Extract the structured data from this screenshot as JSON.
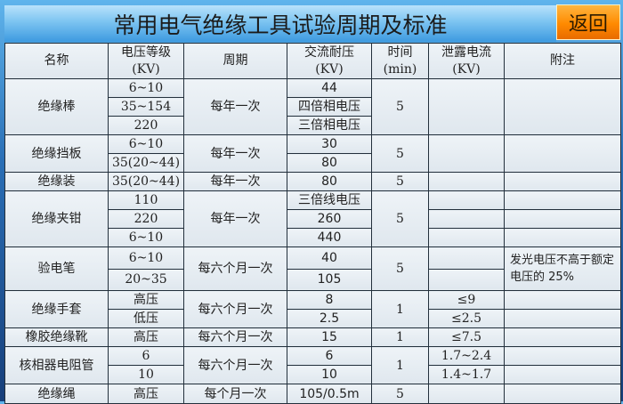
{
  "header": {
    "title": "常用电气绝缘工具试验周期及标准",
    "back_label": "返回"
  },
  "columns": [
    "名称",
    "电压等级\n(KV)",
    "周期",
    "交流耐压\n(KV)",
    "时间\n(min)",
    "泄露电流\n(KV)",
    "附注"
  ],
  "groups": [
    {
      "name": "绝缘棒",
      "period": "每年一次",
      "time": "5",
      "leak_merged": true,
      "notes_merged": true,
      "note": "",
      "rows": [
        {
          "voltage": "6~10",
          "ac": "44"
        },
        {
          "voltage": "35~154",
          "ac": "四倍相电压"
        },
        {
          "voltage": "220",
          "ac": "三倍相电压"
        }
      ]
    },
    {
      "name": "绝缘挡板",
      "period": "每年一次",
      "time": "5",
      "leak_merged": true,
      "notes_merged": true,
      "note": "",
      "rows": [
        {
          "voltage": "6~10",
          "ac": "30"
        },
        {
          "voltage": "35(20~44)",
          "ac": "80"
        }
      ]
    },
    {
      "name": "绝缘装",
      "period": "每年一次",
      "time": "5",
      "leak_merged": true,
      "notes_merged": true,
      "note": "",
      "rows": [
        {
          "voltage": "35(20~44)",
          "ac": "80"
        }
      ]
    },
    {
      "name": "绝缘夹钳",
      "period": "每年一次",
      "time": "5",
      "leak_merged": false,
      "notes_merged": false,
      "note": "",
      "rows": [
        {
          "voltage": "110",
          "ac": "三倍线电压",
          "leak": ""
        },
        {
          "voltage": "220",
          "ac": "260",
          "leak": ""
        },
        {
          "voltage": "6~10",
          "ac": "440",
          "leak": ""
        }
      ]
    },
    {
      "name": "验电笔",
      "period": "每六个月一次",
      "time": "5",
      "leak_merged": false,
      "notes_merged": true,
      "note": "发光电压不高于额定电压的 25%",
      "rows": [
        {
          "voltage": "6~10",
          "ac": "40",
          "leak": ""
        },
        {
          "voltage": "20~35",
          "ac": "105",
          "leak": ""
        }
      ]
    },
    {
      "name": "绝缘手套",
      "period": "每六个月一次",
      "time": "1",
      "leak_merged": false,
      "notes_merged": false,
      "note": "",
      "rows": [
        {
          "voltage": "高压",
          "ac": "8",
          "leak": "≤9"
        },
        {
          "voltage": "低压",
          "ac": "2.5",
          "leak": "≤2.5"
        }
      ]
    },
    {
      "name": "橡胶绝缘靴",
      "period": "每六个月一次",
      "time": "1",
      "leak_merged": false,
      "notes_merged": false,
      "note": "",
      "rows": [
        {
          "voltage": "高压",
          "ac": "15",
          "leak": "≤7.5"
        }
      ]
    },
    {
      "name": "核相器电阻管",
      "period": "每六个月一次",
      "time": "1",
      "leak_merged": false,
      "notes_merged": false,
      "note": "",
      "rows": [
        {
          "voltage": "6",
          "ac": "6",
          "leak": "1.7~2.4"
        },
        {
          "voltage": "10",
          "ac": "10",
          "leak": "1.4~1.7"
        }
      ]
    },
    {
      "name": "绝缘绳",
      "period": "每个月一次",
      "time": "5",
      "leak_merged": true,
      "notes_merged": true,
      "note": "",
      "rows": [
        {
          "voltage": "高压",
          "ac": "105/0.5m"
        }
      ]
    }
  ],
  "colors": {
    "accent_orange": "#ff8a00",
    "title_blue": "#7cc4f1",
    "cell_bg": "#e6edf2",
    "grid": "#23303c"
  }
}
